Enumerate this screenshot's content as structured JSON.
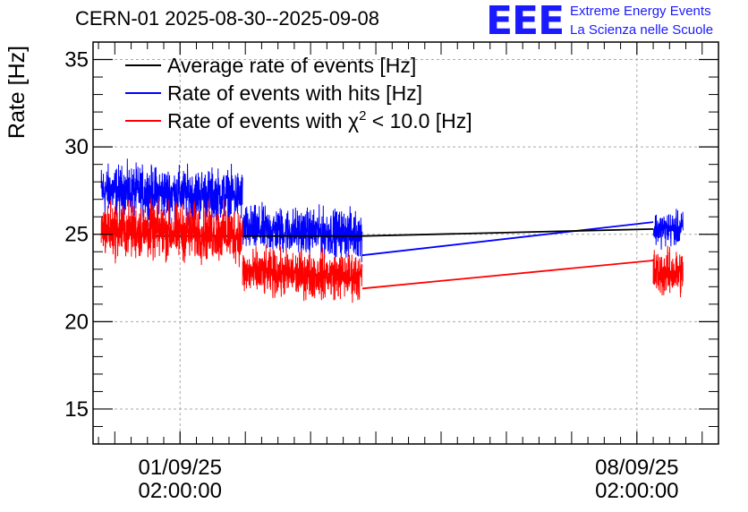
{
  "header": {
    "title": "CERN-01 2025-08-30--2025-09-08",
    "logo_text": "EEE",
    "logo_line1": "Extreme Energy Events",
    "logo_line2": "La Scienza nelle Scuole"
  },
  "chart_data": {
    "type": "line",
    "ylabel": "Rate [Hz]",
    "ylim": [
      13,
      36
    ],
    "yticks": [
      15,
      20,
      25,
      30,
      35
    ],
    "xlim": [
      "2025-08-30T18:00:00",
      "2025-09-09T08:00:00"
    ],
    "xticks": [
      {
        "date": "2025-09-01T02:00:00",
        "line1": "01/09/25",
        "line2": "02:00:00"
      },
      {
        "date": "2025-09-08T02:00:00",
        "line1": "08/09/25",
        "line2": "02:00:00"
      }
    ],
    "grid": true,
    "legend": {
      "position": "top-left"
    },
    "series": [
      {
        "name": "Average rate of events [Hz]",
        "legend_main": "Average rate of events [Hz]",
        "color": "#000000",
        "segments": [
          {
            "x": [
              "2025-08-31T16:00:00",
              "2025-09-03T21:00:00"
            ],
            "level": [
              24.9,
              24.9
            ],
            "noise": 0
          },
          {
            "x": [
              "2025-09-03T21:00:00",
              "2025-09-08T08:00:00"
            ],
            "level": [
              24.9,
              25.3
            ],
            "noise": 0
          }
        ]
      },
      {
        "name": "Rate of events with hits [Hz]",
        "legend_main": "Rate of events with hits [Hz]",
        "color": "#0000ff",
        "segments": [
          {
            "x": [
              "2025-08-30T21:00:00",
              "2025-09-02T01:00:00"
            ],
            "level": [
              27.5,
              27.2
            ],
            "noise": 2.1
          },
          {
            "x": [
              "2025-09-02T01:00:00",
              "2025-09-03T21:00:00"
            ],
            "level": [
              25.3,
              25.0
            ],
            "noise": 1.9
          },
          {
            "x": [
              "2025-09-03T21:00:00",
              "2025-09-08T08:00:00"
            ],
            "level": [
              23.8,
              25.7
            ],
            "noise": 0
          },
          {
            "x": [
              "2025-09-08T08:00:00",
              "2025-09-08T19:00:00"
            ],
            "level": [
              25.3,
              25.3
            ],
            "noise": 1.4
          }
        ]
      },
      {
        "name": "Rate of events with χ2 < 10.0 [Hz]",
        "legend_main": "Rate of events with χ",
        "legend_sup": "2",
        "legend_rest": " < 10.0 [Hz]",
        "color": "#ff0000",
        "segments": [
          {
            "x": [
              "2025-08-30T21:00:00",
              "2025-09-02T01:00:00"
            ],
            "level": [
              25.3,
              25.0
            ],
            "noise": 2.3
          },
          {
            "x": [
              "2025-09-02T01:00:00",
              "2025-09-03T21:00:00"
            ],
            "level": [
              22.8,
              22.6
            ],
            "noise": 1.9
          },
          {
            "x": [
              "2025-09-03T21:00:00",
              "2025-09-08T08:00:00"
            ],
            "level": [
              21.9,
              23.5
            ],
            "noise": 0
          },
          {
            "x": [
              "2025-09-08T08:00:00",
              "2025-09-08T19:00:00"
            ],
            "level": [
              22.8,
              22.8
            ],
            "noise": 1.9
          }
        ]
      }
    ]
  }
}
